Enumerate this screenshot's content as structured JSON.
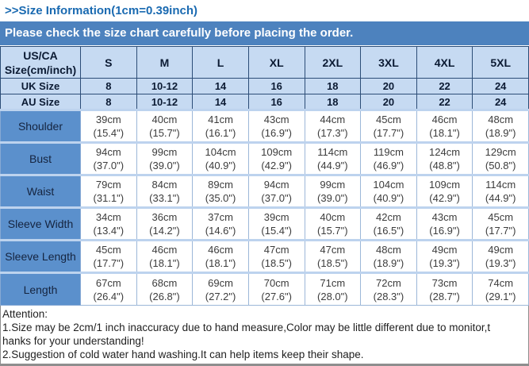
{
  "page": {
    "title": ">>Size Information(1cm=0.39inch)",
    "banner": "Please check the size chart carefully before placing the order."
  },
  "table": {
    "corner_line1": "US/CA",
    "corner_line2": "Size(cm/inch)",
    "size_columns": [
      "S",
      "M",
      "L",
      "XL",
      "2XL",
      "3XL",
      "4XL",
      "5XL"
    ],
    "size_rows": [
      {
        "label": "UK Size",
        "values": [
          "8",
          "10-12",
          "14",
          "16",
          "18",
          "20",
          "22",
          "24"
        ]
      },
      {
        "label": "AU Size",
        "values": [
          "8",
          "10-12",
          "14",
          "16",
          "18",
          "20",
          "22",
          "24"
        ]
      }
    ],
    "measurement_rows": [
      {
        "label": "Shoulder",
        "cells": [
          {
            "cm": "39cm",
            "in": "(15.4\")"
          },
          {
            "cm": "40cm",
            "in": "(15.7\")"
          },
          {
            "cm": "41cm",
            "in": "(16.1\")"
          },
          {
            "cm": "43cm",
            "in": "(16.9\")"
          },
          {
            "cm": "44cm",
            "in": "(17.3\")"
          },
          {
            "cm": "45cm",
            "in": "(17.7\")"
          },
          {
            "cm": "46cm",
            "in": "(18.1\")"
          },
          {
            "cm": "48cm",
            "in": "(18.9\")"
          }
        ]
      },
      {
        "label": "Bust",
        "cells": [
          {
            "cm": "94cm",
            "in": "(37.0\")"
          },
          {
            "cm": "99cm",
            "in": "(39.0\")"
          },
          {
            "cm": "104cm",
            "in": "(40.9\")"
          },
          {
            "cm": "109cm",
            "in": "(42.9\")"
          },
          {
            "cm": "114cm",
            "in": "(44.9\")"
          },
          {
            "cm": "119cm",
            "in": "(46.9\")"
          },
          {
            "cm": "124cm",
            "in": "(48.8\")"
          },
          {
            "cm": "129cm",
            "in": "(50.8\")"
          }
        ]
      },
      {
        "label": "Waist",
        "cells": [
          {
            "cm": "79cm",
            "in": "(31.1\")"
          },
          {
            "cm": "84cm",
            "in": "(33.1\")"
          },
          {
            "cm": "89cm",
            "in": "(35.0\")"
          },
          {
            "cm": "94cm",
            "in": "(37.0\")"
          },
          {
            "cm": "99cm",
            "in": "(39.0\")"
          },
          {
            "cm": "104cm",
            "in": "(40.9\")"
          },
          {
            "cm": "109cm",
            "in": "(42.9\")"
          },
          {
            "cm": "114cm",
            "in": "(44.9\")"
          }
        ]
      },
      {
        "label": "Sleeve Width",
        "cells": [
          {
            "cm": "34cm",
            "in": "(13.4\")"
          },
          {
            "cm": "36cm",
            "in": "(14.2\")"
          },
          {
            "cm": "37cm",
            "in": "(14.6\")"
          },
          {
            "cm": "39cm",
            "in": "(15.4\")"
          },
          {
            "cm": "40cm",
            "in": "(15.7\")"
          },
          {
            "cm": "42cm",
            "in": "(16.5\")"
          },
          {
            "cm": "43cm",
            "in": "(16.9\")"
          },
          {
            "cm": "45cm",
            "in": "(17.7\")"
          }
        ]
      },
      {
        "label": "Sleeve Length",
        "cells": [
          {
            "cm": "45cm",
            "in": "(17.7\")"
          },
          {
            "cm": "46cm",
            "in": "(18.1\")"
          },
          {
            "cm": "46cm",
            "in": "(18.1\")"
          },
          {
            "cm": "47cm",
            "in": "(18.5\")"
          },
          {
            "cm": "47cm",
            "in": "(18.5\")"
          },
          {
            "cm": "48cm",
            "in": "(18.9\")"
          },
          {
            "cm": "49cm",
            "in": "(19.3\")"
          },
          {
            "cm": "49cm",
            "in": "(19.3\")"
          }
        ]
      },
      {
        "label": "Length",
        "cells": [
          {
            "cm": "67cm",
            "in": "(26.4\")"
          },
          {
            "cm": "68cm",
            "in": "(26.8\")"
          },
          {
            "cm": "69cm",
            "in": "(27.2\")"
          },
          {
            "cm": "70cm",
            "in": "(27.6\")"
          },
          {
            "cm": "71cm",
            "in": "(28.0\")"
          },
          {
            "cm": "72cm",
            "in": "(28.3\")"
          },
          {
            "cm": "73cm",
            "in": "(28.7\")"
          },
          {
            "cm": "74cm",
            "in": "(29.1\")"
          }
        ]
      }
    ]
  },
  "attention": {
    "heading": "Attention:",
    "lines": [
      "1.Size may be 2cm/1 inch inaccuracy due to hand measure,Color may be little different due to monitor,t",
      "hanks for your understanding!",
      "2.Suggestion of cold water hand washing.It can help items keep their shape."
    ]
  },
  "colors": {
    "title_blue": "#1a6ab1",
    "banner_bg": "#4d82be",
    "header_bg": "#c6daf2",
    "label_bg": "#5b90cc",
    "border_dark": "#2c4d77",
    "border_light": "#bdd3ee"
  }
}
